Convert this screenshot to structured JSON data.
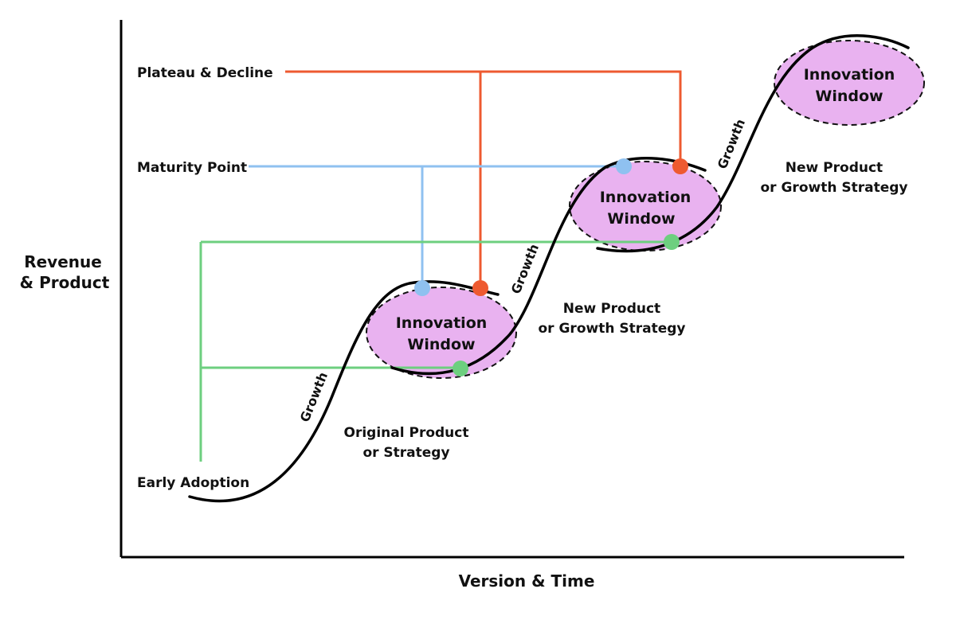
{
  "axes": {
    "y_title_line1": "Revenue",
    "y_title_line2": "& Product",
    "x_title": "Version & Time"
  },
  "levels": {
    "plateau": "Plateau & Decline",
    "maturity": "Maturity Point",
    "early": "Early Adoption"
  },
  "windows": [
    {
      "line1": "Innovation",
      "line2": "Window"
    },
    {
      "line1": "Innovation",
      "line2": "Window"
    },
    {
      "line1": "Innovation",
      "line2": "Window"
    }
  ],
  "growth_label": "Growth",
  "stages": {
    "original_line1": "Original Product",
    "original_line2": "or Strategy",
    "new1_line1": "New Product",
    "new1_line2": "or Growth Strategy",
    "new2_line1": "New Product",
    "new2_line2": "or Growth Strategy"
  },
  "colors": {
    "plateau": "#ee5a30",
    "maturity": "#8fc1f0",
    "early": "#6dcf7f",
    "window_fill": "#e9b2f0",
    "curve": "#000000"
  }
}
